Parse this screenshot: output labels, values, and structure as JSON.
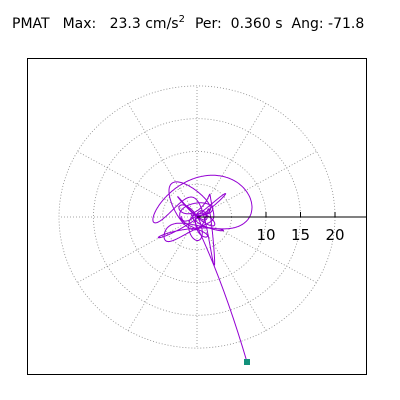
{
  "header": {
    "name": "PMAT",
    "max_label": "Max:",
    "max_value": "23.3",
    "max_unit": "cm/s",
    "max_unit_sup": "2",
    "per_label": "Per:",
    "per_value": "0.360 s",
    "ang_label": "Ang:",
    "ang_value": "-71.8"
  },
  "chart_data": {
    "type": "scatter",
    "description_kind": "polar particle-motion trace",
    "radial_ticks": [
      10,
      15,
      20
    ],
    "tick_labels": [
      "10",
      "15",
      "20"
    ],
    "rings": [
      5,
      10,
      15,
      20
    ],
    "colors": {
      "trace": "#9400d3",
      "grid": "#888888",
      "end_marker": "#12917a"
    }
  }
}
